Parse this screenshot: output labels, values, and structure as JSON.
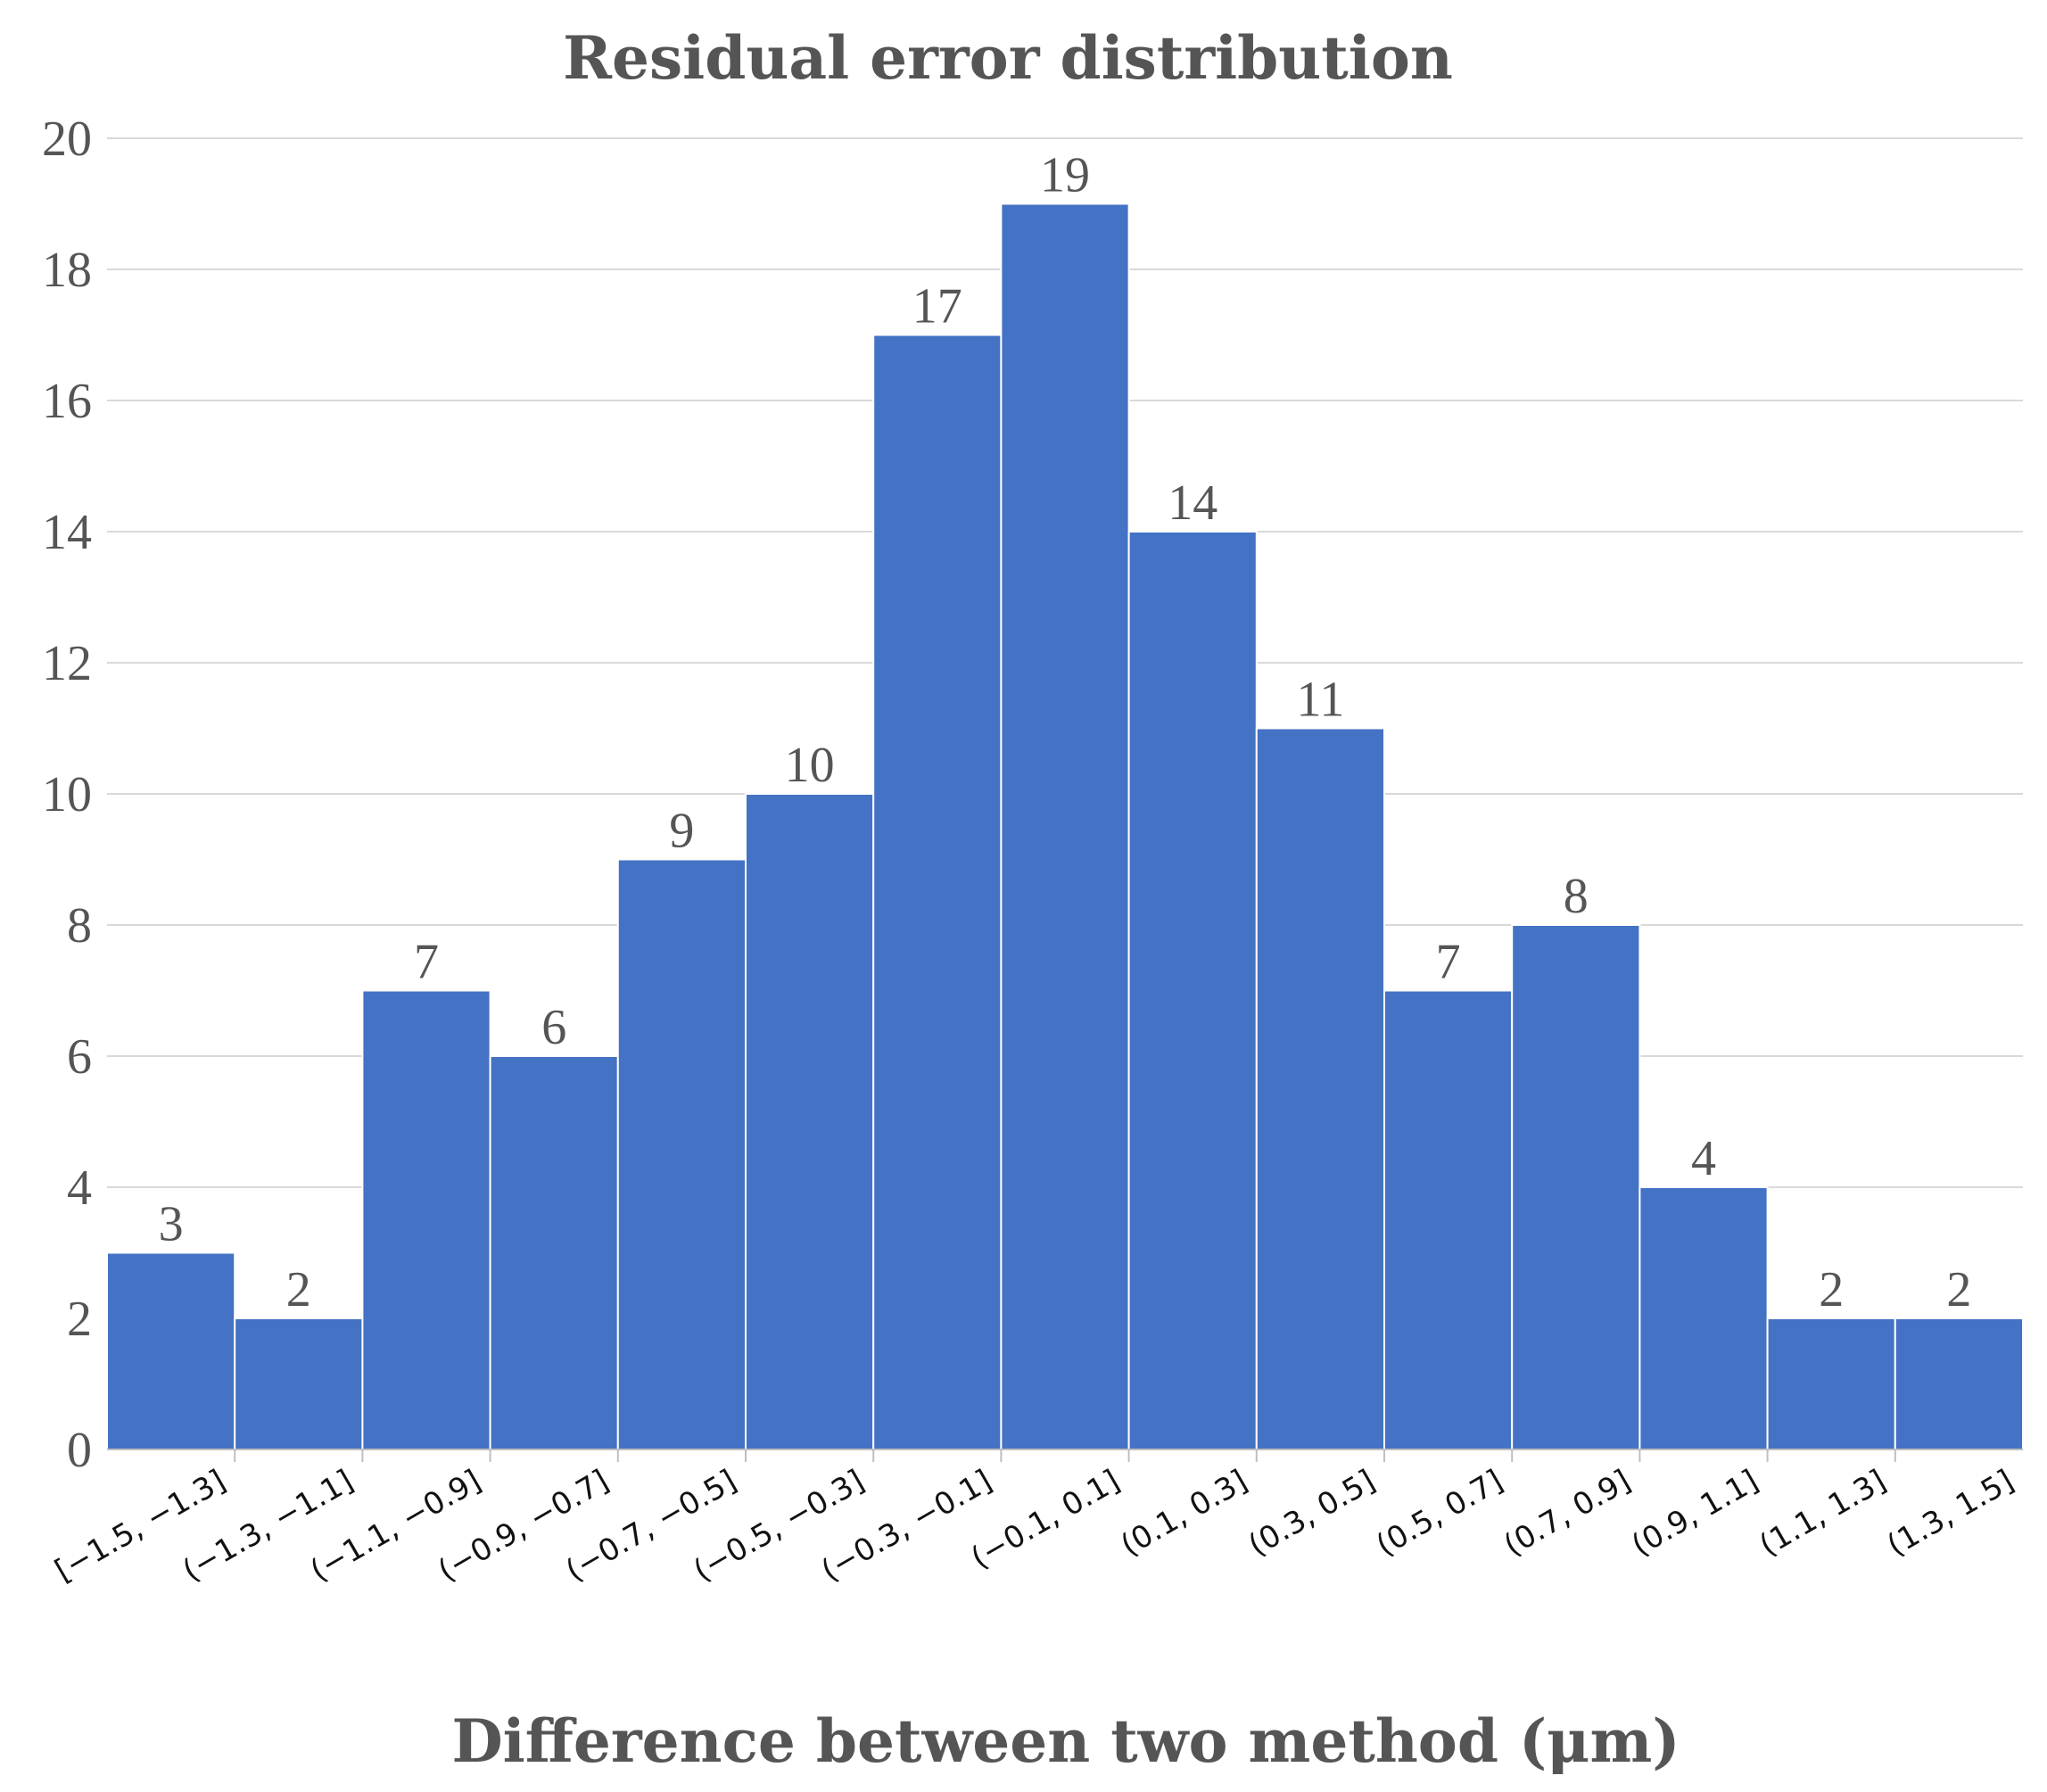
{
  "chart_data": {
    "type": "bar",
    "title": "Residual error distribution",
    "xlabel": "Difference between two method (μm)",
    "ylabel": "",
    "ylim": [
      0,
      20
    ],
    "yticks": [
      "0",
      "2",
      "4",
      "6",
      "8",
      "10",
      "12",
      "14",
      "16",
      "18",
      "20"
    ],
    "grid": true,
    "bar_color": "#4472C4",
    "categories": [
      "[−1.5, −1.3]",
      "(−1.3, −1.1]",
      "(−1.1, −0.9]",
      "(−0.9, −0.7]",
      "(−0.7, −0.5]",
      "(−0.5, −0.3]",
      "(−0.3, −0.1]",
      "(−0.1, 0.1]",
      "(0.1, 0.3]",
      "(0.3, 0.5]",
      "(0.5, 0.7]",
      "(0.7, 0.9]",
      "(0.9, 1.1]",
      "(1.1, 1.3]",
      "(1.3, 1.5]"
    ],
    "values": [
      3,
      2,
      7,
      6,
      9,
      10,
      17,
      19,
      14,
      11,
      7,
      8,
      4,
      2,
      2
    ]
  }
}
